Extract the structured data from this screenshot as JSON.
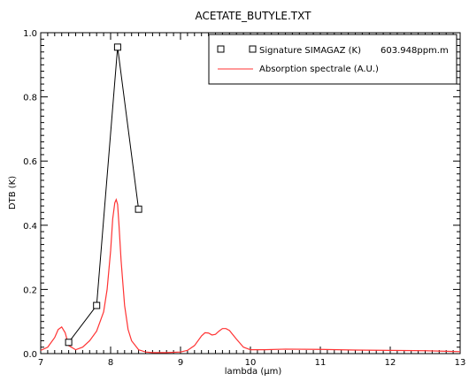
{
  "chart_data": {
    "type": "line",
    "title": "ACETATE_BUTYLE.TXT",
    "xlabel": "lambda (µm)",
    "ylabel": "DTB (K)",
    "xlim": [
      7,
      13
    ],
    "ylim": [
      0,
      1.0
    ],
    "x_ticks": [
      7,
      8,
      9,
      10,
      11,
      12,
      13
    ],
    "y_ticks": [
      0.0,
      0.2,
      0.4,
      0.6,
      0.8,
      1.0
    ],
    "x_tick_labels": [
      "7",
      "8",
      "9",
      "10",
      "11",
      "12",
      "13"
    ],
    "y_tick_labels": [
      "0.0",
      "0.2",
      "0.4",
      "0.6",
      "0.8",
      "1.0"
    ],
    "grid": false,
    "legend_position": "top-right",
    "series": [
      {
        "name": "Signature SIMAGAZ (K)",
        "legend_value": "603.948ppm.m",
        "color": "#000000",
        "marker": "square",
        "x": [
          7.4,
          7.8,
          8.1,
          8.4
        ],
        "y": [
          0.035,
          0.15,
          0.955,
          0.45
        ]
      },
      {
        "name": "Absorption spectrale (A.U.)",
        "color": "#ff3333",
        "marker": "none",
        "x": [
          7.0,
          7.1,
          7.2,
          7.25,
          7.3,
          7.35,
          7.4,
          7.5,
          7.6,
          7.7,
          7.8,
          7.9,
          7.95,
          8.0,
          8.03,
          8.06,
          8.08,
          8.1,
          8.12,
          8.15,
          8.2,
          8.25,
          8.3,
          8.4,
          8.5,
          8.6,
          8.8,
          9.0,
          9.1,
          9.2,
          9.3,
          9.35,
          9.4,
          9.45,
          9.5,
          9.55,
          9.6,
          9.65,
          9.7,
          9.8,
          9.9,
          10.0,
          10.2,
          10.5,
          11.0,
          11.5,
          12.0,
          12.5,
          13.0
        ],
        "y": [
          0.01,
          0.02,
          0.05,
          0.075,
          0.083,
          0.065,
          0.025,
          0.012,
          0.02,
          0.04,
          0.07,
          0.13,
          0.2,
          0.32,
          0.42,
          0.47,
          0.48,
          0.465,
          0.4,
          0.29,
          0.15,
          0.075,
          0.04,
          0.012,
          0.005,
          0.003,
          0.003,
          0.005,
          0.01,
          0.025,
          0.055,
          0.065,
          0.064,
          0.058,
          0.06,
          0.07,
          0.078,
          0.078,
          0.072,
          0.045,
          0.02,
          0.012,
          0.012,
          0.014,
          0.013,
          0.011,
          0.01,
          0.009,
          0.006
        ]
      }
    ]
  }
}
